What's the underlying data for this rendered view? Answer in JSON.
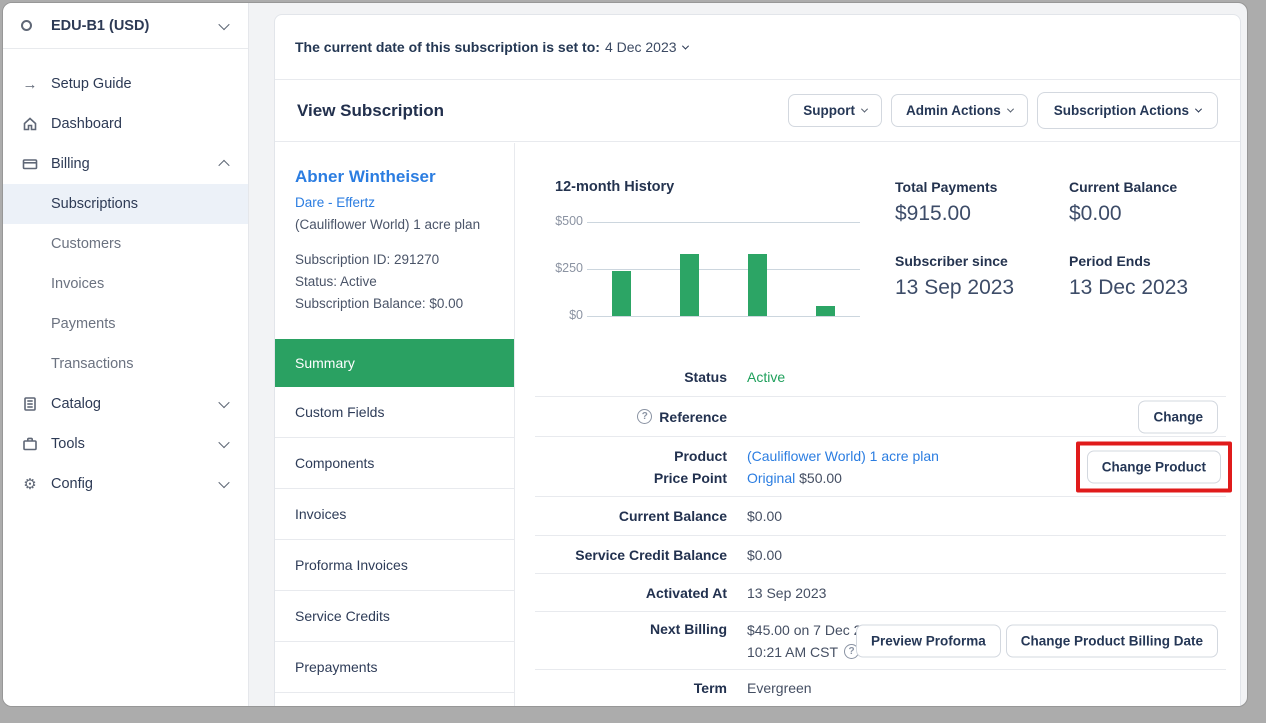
{
  "sidebar": {
    "workspace": {
      "label": "EDU-B1 (USD)"
    },
    "setup_guide": "Setup Guide",
    "dashboard": "Dashboard",
    "billing": "Billing",
    "billing_children": [
      "Subscriptions",
      "Customers",
      "Invoices",
      "Payments",
      "Transactions"
    ],
    "active_item": "Subscriptions",
    "catalog": "Catalog",
    "tools": "Tools",
    "config": "Config"
  },
  "banner": {
    "text_bold": "The current date of this subscription is set to:",
    "date": "4 Dec 2023"
  },
  "header": {
    "title": "View Subscription",
    "support_label": "Support",
    "admin_actions_label": "Admin Actions",
    "subscription_actions_label": "Subscription Actions"
  },
  "customer": {
    "name": "Abner Wintheiser",
    "company": "Dare - Effertz",
    "plan": "(Cauliflower World) 1 acre plan",
    "subscription_id": "Subscription ID: 291270",
    "status": "Status: Active",
    "balance": "Subscription Balance: $0.00"
  },
  "tabs": [
    {
      "label": "Summary",
      "active": true
    },
    {
      "label": "Custom Fields",
      "active": false
    },
    {
      "label": "Components",
      "active": false
    },
    {
      "label": "Invoices",
      "active": false
    },
    {
      "label": "Proforma Invoices",
      "active": false
    },
    {
      "label": "Service Credits",
      "active": false
    },
    {
      "label": "Prepayments",
      "active": false
    }
  ],
  "chart_data": {
    "type": "bar",
    "title": "12-month History",
    "ylim": [
      0,
      500
    ],
    "y_ticks": [
      {
        "value": 0,
        "label": "$0"
      },
      {
        "value": 250,
        "label": "$250"
      },
      {
        "value": 500,
        "label": "$500"
      }
    ],
    "slot_count": 12,
    "bars": [
      {
        "slot": 1,
        "value": 240
      },
      {
        "slot": 4,
        "value": 330
      },
      {
        "slot": 7,
        "value": 330
      },
      {
        "slot": 10,
        "value": 55
      }
    ],
    "bar_color": "#2ca565",
    "xlabel": "",
    "ylabel": "",
    "grid": true,
    "legend": "none",
    "note": "Four green bars over a 12-slot axis; no x tick labels shown; values estimated against the $250 gridline"
  },
  "stats": [
    {
      "label": "Total Payments",
      "value": "$915.00"
    },
    {
      "label": "Current Balance",
      "value": "$0.00"
    },
    {
      "label": "Subscriber since",
      "value": "13 Sep 2023"
    },
    {
      "label": "Period Ends",
      "value": "13 Dec 2023"
    }
  ],
  "details": {
    "status": {
      "label": "Status",
      "value": "Active"
    },
    "reference": {
      "label": "Reference",
      "button": "Change"
    },
    "product": {
      "label1": "Product",
      "value1": "(Cauliflower World) 1 acre plan",
      "label2": "Price Point",
      "value2_link": "Original",
      "value2_price": "$50.00",
      "button": "Change Product"
    },
    "current_balance": {
      "label": "Current Balance",
      "value": "$0.00"
    },
    "service_credit_balance": {
      "label": "Service Credit Balance",
      "value": "$0.00"
    },
    "activated_at": {
      "label": "Activated At",
      "value": "13 Sep 2023"
    },
    "next_billing": {
      "label": "Next Billing",
      "value_line1": "$45.00 on 7 Dec 2023",
      "value_line2": "10:21 AM CST",
      "button1": "Preview Proforma",
      "button2": "Change Product Billing Date"
    },
    "term": {
      "label": "Term",
      "value": "Evergreen"
    }
  },
  "colors": {
    "accent_green": "#2aa162",
    "status_green": "#1fa05c",
    "link_blue": "#2b7de1",
    "annotation_red": "#e01b1b",
    "sidebar_active_bg": "#ecf1f8",
    "navy_text": "#24334f"
  }
}
